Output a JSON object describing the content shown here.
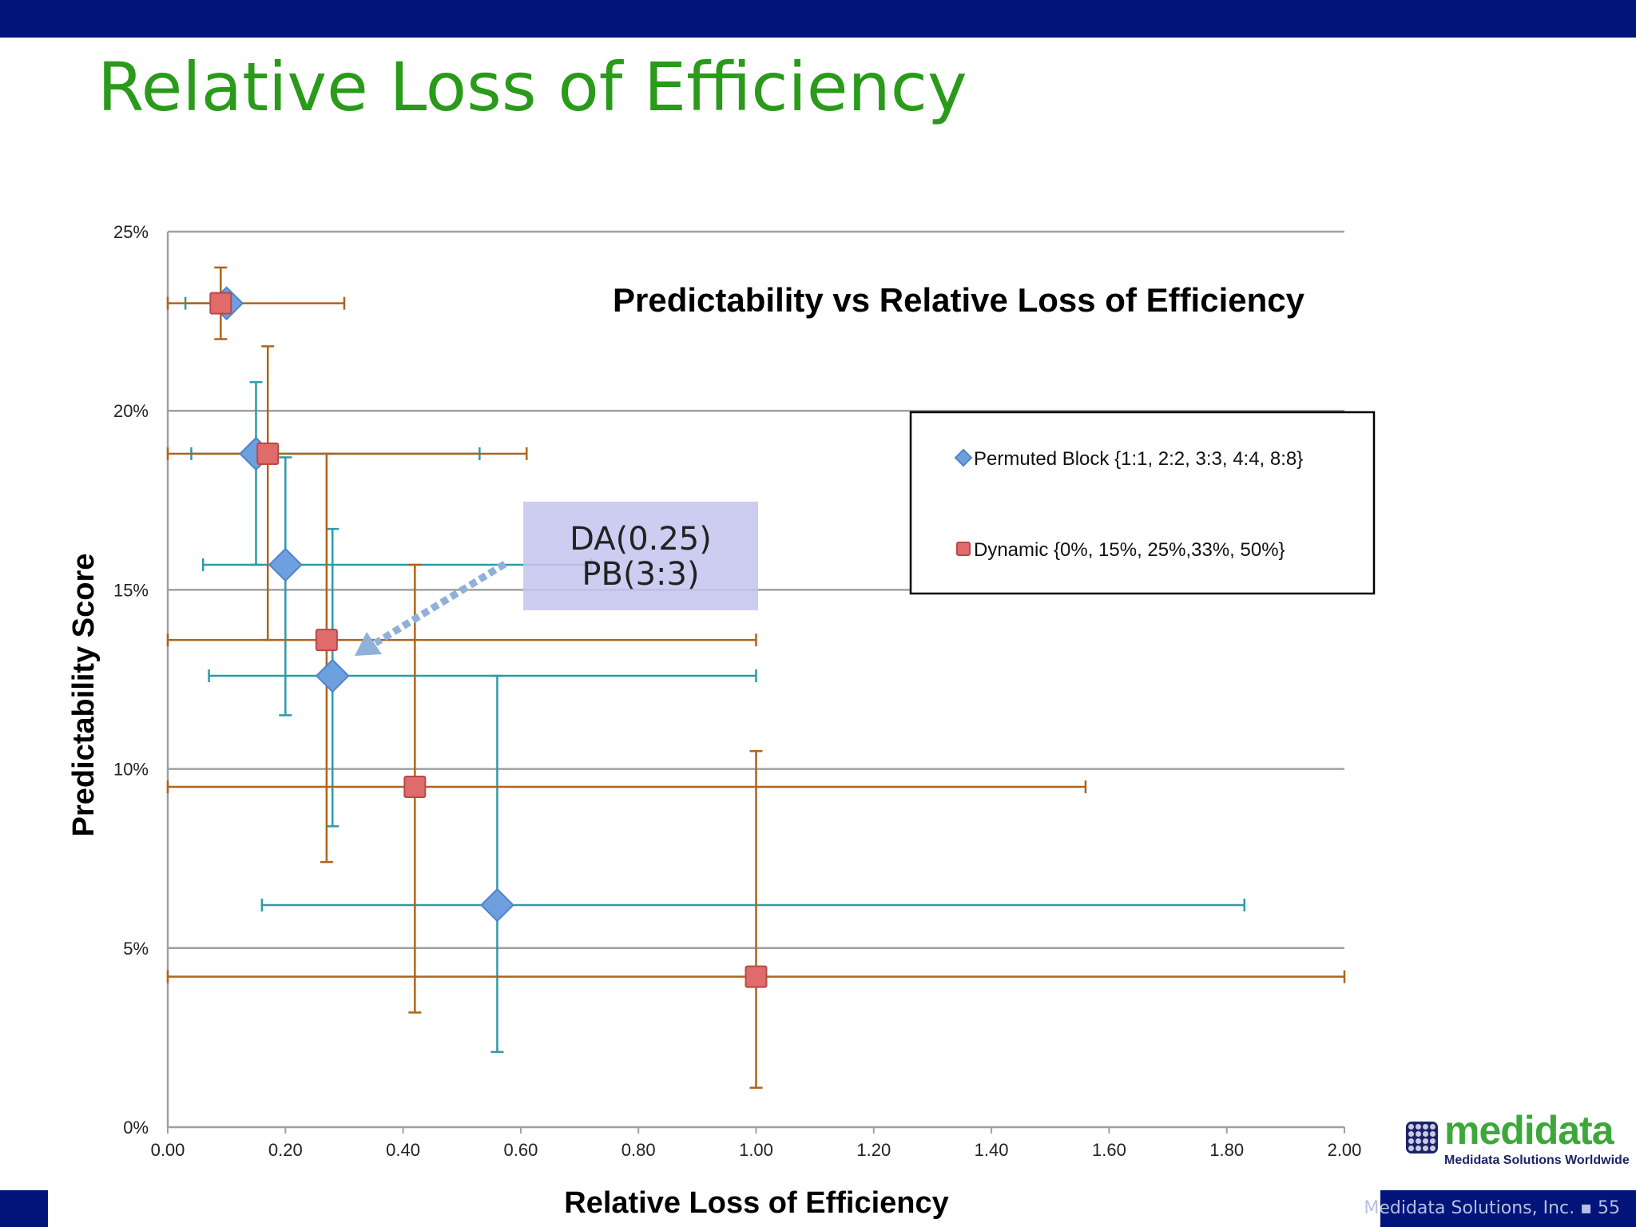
{
  "slide": {
    "title": "Relative Loss of Efficiency",
    "footer_text": "Medidata Solutions, Inc. ▪ 55"
  },
  "logo": {
    "word": "medidata",
    "tagline": "Medidata Solutions Worldwide"
  },
  "annotation": {
    "line1": "DA(0.25)",
    "line2": "PB(3:3)"
  },
  "colors": {
    "title": "#2a9a1a",
    "header_bar": "#001479",
    "pb_error": "#2e9aa8",
    "pb_marker": "#6ea0e0",
    "dyn_error": "#b0641a",
    "dyn_marker": "#e06b6b",
    "grid": "#a0a0a0",
    "callout": "#c4c4ee",
    "arrow": "#8fb0d8"
  },
  "chart_data": {
    "type": "scatter",
    "title": "Predictability vs Relative Loss of Efficiency",
    "xlabel": "Relative Loss of Efficiency",
    "ylabel": "Predictability Score",
    "xlim": [
      0,
      2
    ],
    "ylim": [
      0,
      25
    ],
    "x_ticks": [
      "0.00",
      "0.20",
      "0.40",
      "0.60",
      "0.80",
      "1.00",
      "1.20",
      "1.40",
      "1.60",
      "1.80",
      "2.00"
    ],
    "y_ticks": [
      "0%",
      "5%",
      "10%",
      "15%",
      "20%",
      "25%"
    ],
    "grid": "horizontal",
    "legend_position": "right",
    "series": [
      {
        "name": "Permuted Block {1:1, 2:2, 3:3, 4:4, 8:8}",
        "marker": "diamond",
        "points": [
          {
            "x": 0.1,
            "y": 23.0,
            "x_err": [
              0.03,
              0.1
            ],
            "y_err": [
              23.0,
              23.0
            ]
          },
          {
            "x": 0.15,
            "y": 18.8,
            "x_err": [
              0.04,
              0.53
            ],
            "y_err": [
              15.7,
              20.8
            ]
          },
          {
            "x": 0.2,
            "y": 15.7,
            "x_err": [
              0.06,
              0.72
            ],
            "y_err": [
              11.5,
              18.7
            ]
          },
          {
            "x": 0.28,
            "y": 12.6,
            "x_err": [
              0.07,
              1.0
            ],
            "y_err": [
              8.4,
              16.7
            ]
          },
          {
            "x": 0.56,
            "y": 6.2,
            "x_err": [
              0.16,
              1.83
            ],
            "y_err": [
              2.1,
              12.6
            ]
          }
        ]
      },
      {
        "name": "Dynamic {0%, 15%, 25%,33%, 50%}",
        "marker": "square",
        "points": [
          {
            "x": 0.09,
            "y": 23.0,
            "x_err": [
              0.0,
              0.3
            ],
            "y_err": [
              22.0,
              24.0
            ]
          },
          {
            "x": 0.17,
            "y": 18.8,
            "x_err": [
              0.0,
              0.61
            ],
            "y_err": [
              13.6,
              21.8
            ]
          },
          {
            "x": 0.27,
            "y": 13.6,
            "x_err": [
              0.0,
              1.0
            ],
            "y_err": [
              7.4,
              18.8
            ]
          },
          {
            "x": 0.42,
            "y": 9.5,
            "x_err": [
              0.0,
              1.56
            ],
            "y_err": [
              3.2,
              15.7
            ]
          },
          {
            "x": 1.0,
            "y": 4.2,
            "x_err": [
              0.0,
              2.0
            ],
            "y_err": [
              1.1,
              10.5
            ]
          }
        ]
      }
    ]
  }
}
